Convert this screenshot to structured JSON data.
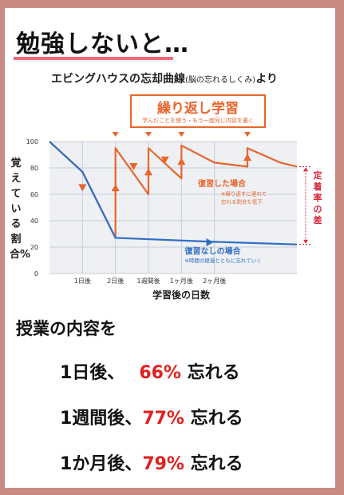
{
  "headline": "勉強しないと…",
  "subtitle": {
    "main": "エビングハウスの忘却曲線",
    "paren": "(脳の忘れるしくみ)",
    "tail": "より"
  },
  "review_box": {
    "title": "繰り返し学習",
    "note": "学んだことを使う・もう一度同じ内容を書く"
  },
  "chart_data": {
    "type": "line",
    "xlabel": "学習後の日数",
    "ylabel": "覚えている割合%",
    "ylim": [
      0,
      100
    ],
    "yticks": [
      0,
      20,
      40,
      60,
      80,
      100
    ],
    "categories": [
      "1日後",
      "2日後",
      "1週間後",
      "1ヶ月後",
      "2ヶ月後"
    ],
    "series": [
      {
        "name": "復習した場合",
        "color": "#e8652b",
        "points": [
          [
            0,
            100
          ],
          [
            1.0,
            77
          ],
          [
            2.0,
            27
          ],
          [
            2.0,
            95
          ],
          [
            3.0,
            60
          ],
          [
            3.0,
            95
          ],
          [
            4.0,
            72
          ],
          [
            4.0,
            97
          ],
          [
            5.0,
            84
          ],
          [
            6.0,
            81
          ],
          [
            6.0,
            95
          ],
          [
            7.0,
            84
          ],
          [
            7.5,
            81
          ]
        ]
      },
      {
        "name": "復習なしの場合",
        "color": "#2f6fc4",
        "points": [
          [
            0,
            100
          ],
          [
            1.0,
            77
          ],
          [
            2.0,
            27
          ],
          [
            5.0,
            24
          ],
          [
            7.5,
            22
          ]
        ]
      }
    ],
    "annotations": {
      "review_label": "復習した場合",
      "review_note1": "※繰り返すに連れて",
      "review_note2": "忘れる割合も低下",
      "no_review_label": "復習なしの場合",
      "no_review_note": "※時間の経過とともに忘れていく",
      "retention_gap": "定着率の差"
    }
  },
  "content_heading": "授業の内容を",
  "stats": [
    {
      "when": "1日後、",
      "pct": "66%",
      "verb": "忘れる"
    },
    {
      "when": "1週間後、",
      "pct": "77%",
      "verb": "忘れる"
    },
    {
      "when": "1か月後、",
      "pct": "79%",
      "verb": "忘れる"
    }
  ],
  "colors": {
    "border": "#c98a84",
    "accent_pink": "#ef6a78",
    "orange": "#e8652b",
    "blue": "#2f6fc4",
    "red": "#e02020",
    "gap_red": "#d8283c"
  }
}
